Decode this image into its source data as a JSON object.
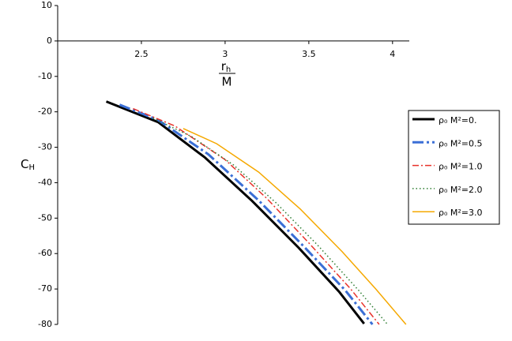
{
  "chart_data": {
    "type": "line",
    "xlabel": {
      "numerator": {
        "main": "r",
        "subscript": "h"
      },
      "denominator": "M"
    },
    "ylabel": {
      "main": "C",
      "subscript": "H"
    },
    "xlim": [
      2.0,
      4.1
    ],
    "ylim": [
      -80,
      10
    ],
    "xticks": [
      2.5,
      3,
      3.5,
      4
    ],
    "yticks": [
      10,
      0,
      -10,
      -20,
      -30,
      -40,
      -50,
      -60,
      -70,
      -80
    ],
    "legend": "right",
    "series": [
      {
        "name": "ρ₀ M²=0.",
        "color": "#000000",
        "style": "solid",
        "width": 3,
        "x": [
          2.29,
          2.6,
          2.88,
          3.16,
          3.44,
          3.68,
          3.83
        ],
        "values": [
          -17.1,
          -22.9,
          -32.9,
          -45.1,
          -58.4,
          -70.7,
          -79.8
        ]
      },
      {
        "name": "ρ₀ M²=0.5",
        "color": "#3b6fd6",
        "style": "longdash",
        "width": 3,
        "x": [
          2.37,
          2.6,
          2.9,
          3.2,
          3.47,
          3.72,
          3.88
        ],
        "values": [
          -18,
          -22.3,
          -32,
          -45,
          -58,
          -70.5,
          -80
        ]
      },
      {
        "name": "ρ₀ M²=1.0",
        "color": "#e8322a",
        "style": "dashdot",
        "width": 1.5,
        "x": [
          2.45,
          2.7,
          3.0,
          3.25,
          3.5,
          3.75,
          3.92
        ],
        "values": [
          -19.1,
          -24,
          -33.5,
          -44.5,
          -57,
          -70,
          -80
        ]
      },
      {
        "name": "ρ₀ M²=2.0",
        "color": "#2e7d32",
        "style": "dotted",
        "width": 1.5,
        "x": [
          2.57,
          2.8,
          3.05,
          3.3,
          3.55,
          3.8,
          3.97
        ],
        "values": [
          -21.8,
          -27,
          -35,
          -45.5,
          -57.5,
          -70.5,
          -80
        ]
      },
      {
        "name": "ρ₀ M²=3.0",
        "color": "#f5a800",
        "style": "solid",
        "width": 1.5,
        "x": [
          2.75,
          2.95,
          3.2,
          3.45,
          3.7,
          3.9,
          4.08
        ],
        "values": [
          -24.7,
          -29,
          -37,
          -47.5,
          -59.5,
          -70,
          -80
        ]
      }
    ]
  }
}
